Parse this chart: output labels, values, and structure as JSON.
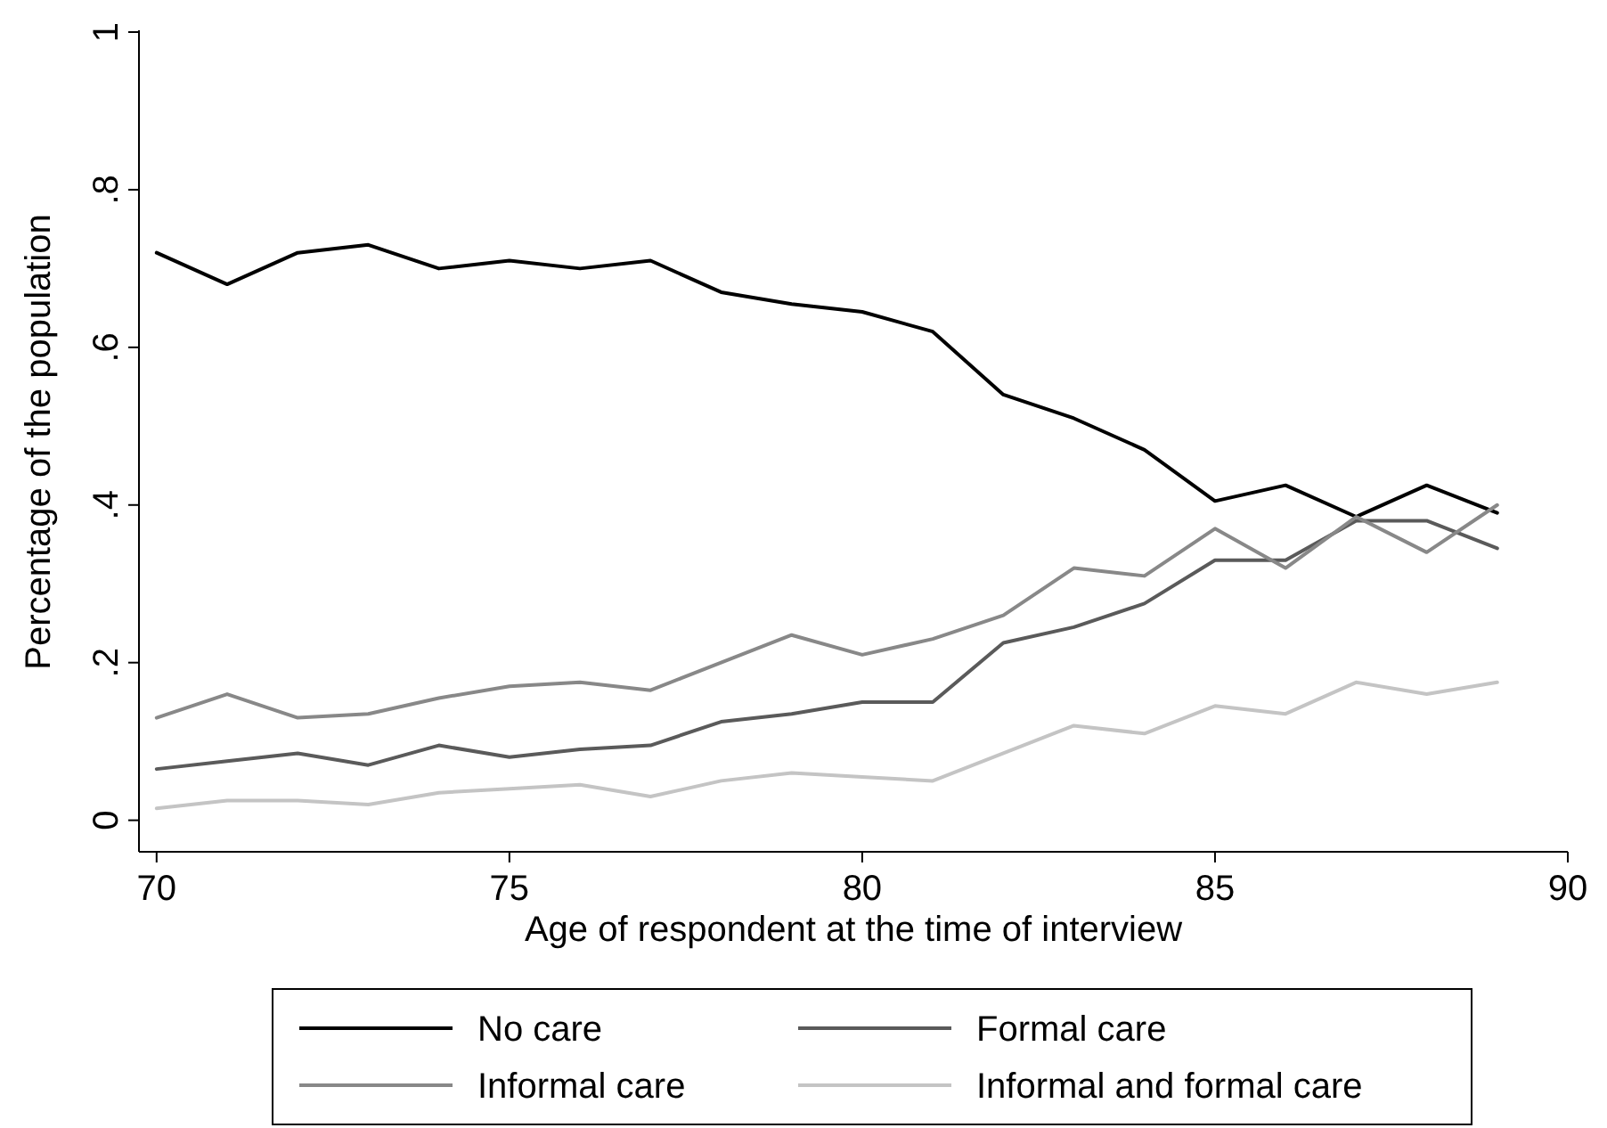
{
  "chart_data": {
    "type": "line",
    "xlabel": "Age of respondent at the time of interview",
    "ylabel": "Percentage of the population",
    "x": [
      70,
      71,
      72,
      73,
      74,
      75,
      76,
      77,
      78,
      79,
      80,
      81,
      82,
      83,
      84,
      85,
      86,
      87,
      88,
      89
    ],
    "series": [
      {
        "name": "No care",
        "color": "#000000",
        "values": [
          0.72,
          0.68,
          0.72,
          0.73,
          0.7,
          0.71,
          0.7,
          0.71,
          0.67,
          0.655,
          0.645,
          0.62,
          0.54,
          0.51,
          0.47,
          0.405,
          0.425,
          0.385,
          0.425,
          0.39
        ]
      },
      {
        "name": "Formal care",
        "color": "#5a5a5a",
        "values": [
          0.065,
          0.075,
          0.085,
          0.07,
          0.095,
          0.08,
          0.09,
          0.095,
          0.125,
          0.135,
          0.15,
          0.15,
          0.225,
          0.245,
          0.275,
          0.33,
          0.33,
          0.38,
          0.38,
          0.345
        ]
      },
      {
        "name": "Informal care",
        "color": "#888888",
        "values": [
          0.13,
          0.16,
          0.13,
          0.135,
          0.155,
          0.17,
          0.175,
          0.165,
          0.2,
          0.235,
          0.21,
          0.23,
          0.26,
          0.32,
          0.31,
          0.37,
          0.32,
          0.385,
          0.34,
          0.4
        ]
      },
      {
        "name": "Informal and formal care",
        "color": "#c4c4c4",
        "values": [
          0.015,
          0.025,
          0.025,
          0.02,
          0.035,
          0.04,
          0.045,
          0.03,
          0.05,
          0.06,
          0.055,
          0.05,
          0.085,
          0.12,
          0.11,
          0.145,
          0.135,
          0.175,
          0.16,
          0.175
        ]
      }
    ],
    "xlim": [
      69.75,
      90
    ],
    "xticks": [
      70,
      75,
      80,
      85,
      90
    ],
    "ylim": [
      -0.04,
      1
    ],
    "yticks": [
      {
        "value": 0,
        "label": "0"
      },
      {
        "value": 0.2,
        "label": ".2"
      },
      {
        "value": 0.4,
        "label": ".4"
      },
      {
        "value": 0.6,
        "label": ".6"
      },
      {
        "value": 0.8,
        "label": ".8"
      },
      {
        "value": 1,
        "label": "1"
      }
    ],
    "grid": false,
    "legend": "bottom",
    "marker": "none",
    "line_style": "solid"
  }
}
